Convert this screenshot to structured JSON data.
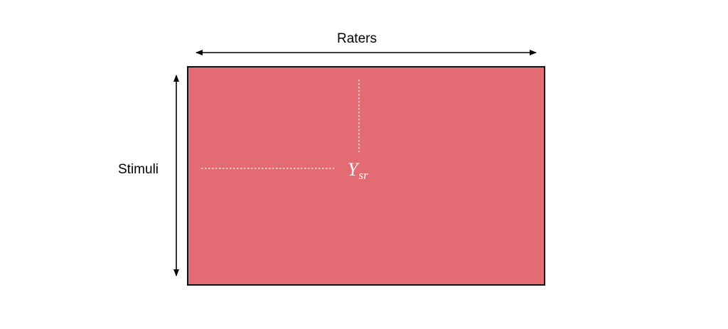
{
  "diagram": {
    "column_axis_label": "Raters",
    "row_axis_label": "Stimuli",
    "cell_symbol": "Y",
    "cell_subscript": "sr",
    "matrix_fill_color": "#e26b74",
    "matrix_border_color": "#111111",
    "guide_line_color": "#ffffff",
    "arrow_color": "#000000"
  }
}
